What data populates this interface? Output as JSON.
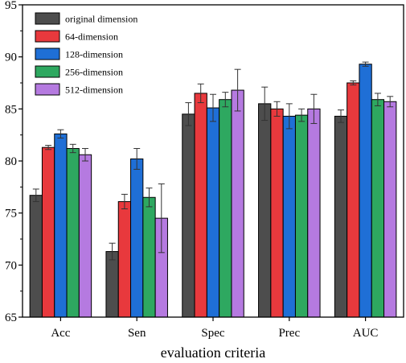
{
  "chart_data": {
    "type": "bar",
    "xlabel": "evaluation criteria",
    "ylabel": "",
    "ylim": [
      65,
      95
    ],
    "yticks": [
      65,
      70,
      75,
      80,
      85,
      90,
      95
    ],
    "categories": [
      "Acc",
      "Sen",
      "Spec",
      "Prec",
      "AUC"
    ],
    "legend_position": "top-left",
    "grid": false,
    "series": [
      {
        "name": "original dimension",
        "color": "#4d4d4d",
        "values": [
          76.7,
          71.3,
          84.5,
          85.5,
          84.3
        ],
        "errors": [
          0.6,
          0.8,
          1.1,
          1.6,
          0.6
        ]
      },
      {
        "name": "64-dimension",
        "color": "#e8393d",
        "values": [
          81.3,
          76.1,
          86.5,
          85.0,
          87.5
        ],
        "errors": [
          0.2,
          0.7,
          0.9,
          0.7,
          0.2
        ]
      },
      {
        "name": "128-dimension",
        "color": "#1f6fd6",
        "values": [
          82.6,
          80.2,
          85.1,
          84.3,
          89.3
        ],
        "errors": [
          0.4,
          1.0,
          1.3,
          1.2,
          0.2
        ]
      },
      {
        "name": "256-dimension",
        "color": "#2ea860",
        "values": [
          81.2,
          76.5,
          85.9,
          84.4,
          85.9
        ],
        "errors": [
          0.4,
          0.9,
          0.7,
          0.6,
          0.6
        ]
      },
      {
        "name": "512-dimension",
        "color": "#b57ae0",
        "values": [
          80.6,
          74.5,
          86.8,
          85.0,
          85.7
        ],
        "errors": [
          0.6,
          3.3,
          2.0,
          1.4,
          0.5
        ]
      }
    ]
  }
}
